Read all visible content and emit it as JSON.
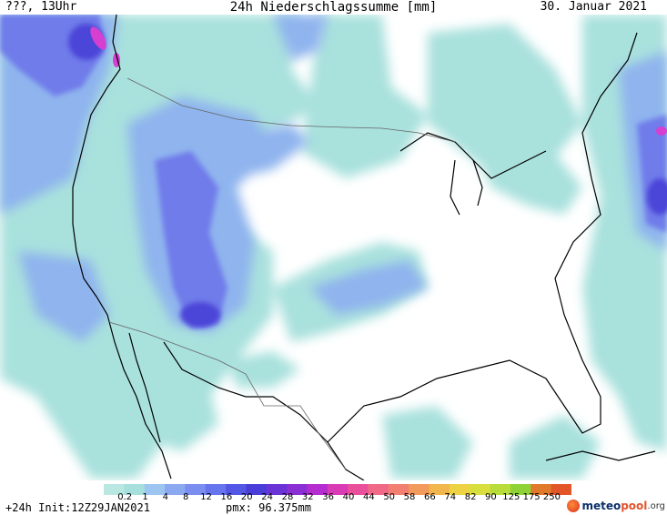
{
  "header": {
    "left": "???, 13Uhr",
    "title": "24h Niederschlagssumme [mm]",
    "date": "30. Januar 2021"
  },
  "footer": {
    "run": "+24h Init:12Z29JAN2021",
    "pmx": "pmx: 96.375mm"
  },
  "logo": {
    "part1": "meteo",
    "part2": "pool",
    "part3": ".org"
  },
  "legend": {
    "ticks": [
      "0.2",
      "1",
      "4",
      "8",
      "12",
      "16",
      "20",
      "24",
      "28",
      "32",
      "36",
      "40",
      "44",
      "50",
      "58",
      "66",
      "74",
      "82",
      "90",
      "125",
      "175",
      "250"
    ],
    "colors": [
      "#b9e7e2",
      "#a6dfdc",
      "#9cc6ef",
      "#8aa9f1",
      "#7a8ef0",
      "#6674ee",
      "#5456e6",
      "#4a3cd9",
      "#6a33d6",
      "#8a2fd4",
      "#b52dd0",
      "#d93bb4",
      "#ea4f9c",
      "#f06986",
      "#f27f72",
      "#f2995c",
      "#f1b64c",
      "#edd243",
      "#d8de3c",
      "#b8dc3a",
      "#8fd236",
      "#e07a2a",
      "#e25529"
    ]
  },
  "map_colors": {
    "light": "#a9e1dd",
    "mid": "#8fb4ee",
    "strong": "#6f7cea",
    "heavy": "#4c45d8",
    "extreme": "#d63fd0"
  }
}
